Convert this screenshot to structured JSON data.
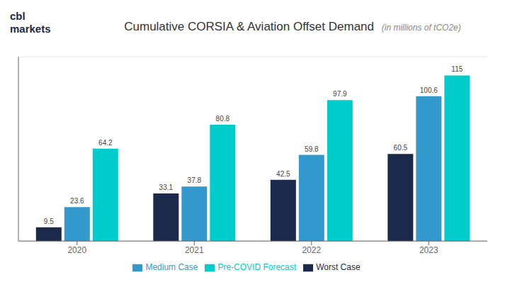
{
  "chart_data": {
    "type": "bar",
    "title": "Cumulative CORSIA & Aviation Offset Demand ",
    "subtitle": "(in millions of tCO2e)",
    "annotations": [
      "cbl",
      "markets"
    ],
    "categories": [
      "2020",
      "2021",
      "2022",
      "2023"
    ],
    "series": [
      {
        "name": "Worst Case",
        "color": "#1b2a4a",
        "values": [
          9.5,
          33.1,
          42.5,
          60.5
        ]
      },
      {
        "name": "Medium Case",
        "color": "#3399cc",
        "values": [
          23.6,
          37.8,
          59.8,
          100.6
        ]
      },
      {
        "name": "Pre-COVID Forecast",
        "color": "#00cccc",
        "values": [
          64.2,
          80.8,
          97.9,
          115.0
        ]
      }
    ],
    "ylim": [
      0,
      128
    ],
    "yticks": [
      0,
      20,
      40,
      60,
      80,
      100,
      120
    ],
    "grid": true,
    "legend": "bottom",
    "data_labels": true,
    "tick_labels": "x"
  }
}
